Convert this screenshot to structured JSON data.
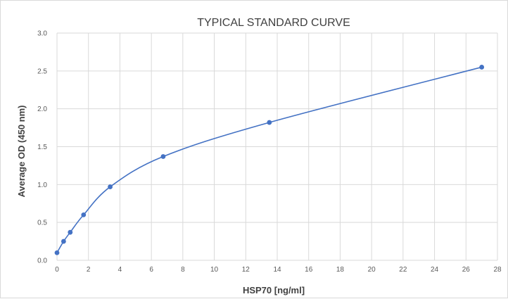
{
  "chart_data": {
    "type": "scatter",
    "title": "TYPICAL STANDARD CURVE",
    "xlabel": "HSP70 [ng/ml]",
    "ylabel": "Average OD (450 nm)",
    "xlim": [
      0,
      28
    ],
    "ylim": [
      0,
      3.0
    ],
    "x_ticks": [
      0,
      2,
      4,
      6,
      8,
      10,
      12,
      14,
      16,
      18,
      20,
      22,
      24,
      26,
      28
    ],
    "y_ticks": [
      "0.0",
      "0.5",
      "1.0",
      "1.5",
      "2.0",
      "2.5",
      "3.0"
    ],
    "grid": true,
    "legend": "none",
    "series": [
      {
        "points": [
          {
            "x": 0,
            "y": 0.1
          },
          {
            "x": 0.42,
            "y": 0.25
          },
          {
            "x": 0.84,
            "y": 0.37
          },
          {
            "x": 1.69,
            "y": 0.6
          },
          {
            "x": 3.38,
            "y": 0.97
          },
          {
            "x": 6.75,
            "y": 1.37
          },
          {
            "x": 13.5,
            "y": 1.82
          },
          {
            "x": 27,
            "y": 2.55
          }
        ],
        "smooth_line": true,
        "color": "#4472c4"
      }
    ]
  },
  "colors": {
    "series": "#4472c4",
    "gridline": "#d9d9d9",
    "text": "#404040"
  }
}
